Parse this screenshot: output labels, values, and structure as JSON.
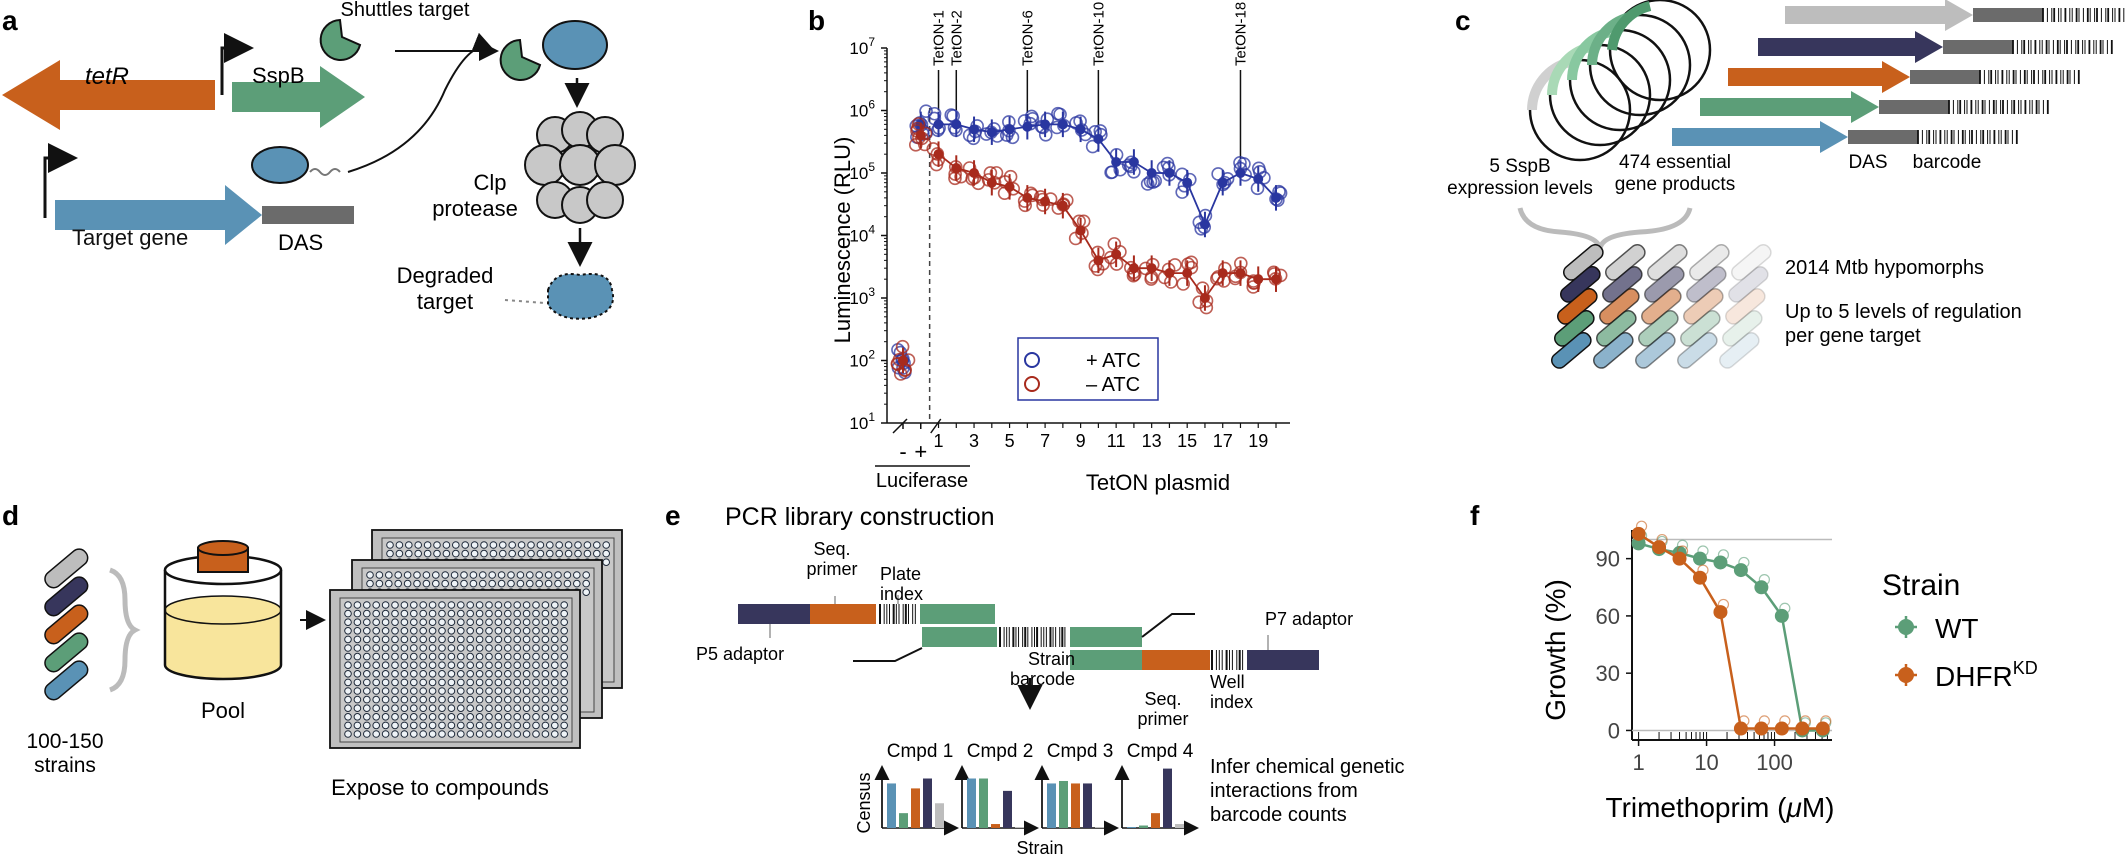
{
  "colors": {
    "orange": "#c8601c",
    "green": "#5c9e78",
    "blue": "#5a92b5",
    "navy": "#37365c",
    "grey": "#bdbdbd",
    "dark_grey": "#6b6b6b",
    "plus_atc": "#2936a0",
    "minus_atc": "#a82a1c",
    "yellow": "#f8e59c",
    "plate": "#bfbfbf"
  },
  "panel_a": {
    "letter": "a",
    "tetR": "tetR",
    "sspb": "SspB",
    "shuttles": "Shuttles\ntarget",
    "clp": "Clp\nprotease",
    "target_gene": "Target gene",
    "das": "DAS",
    "degraded": "Degraded\ntarget"
  },
  "panel_b": {
    "letter": "b",
    "ylabel": "Luminescence (RLU)",
    "xlabel": "TetON plasmid",
    "luciferase_label": "Luciferase",
    "luciferase_ticks": [
      "-",
      "+"
    ],
    "legend": [
      "+ ATC",
      "– ATC"
    ],
    "annotations": [
      "TetON-1",
      "TetON-2",
      "TetON-6",
      "TetON-10",
      "TetON-18"
    ]
  },
  "chart_data": {
    "type": "scatter",
    "yscale": "log",
    "ylim": [
      10,
      10000000
    ],
    "yticks": [
      "10^1",
      "10^2",
      "10^3",
      "10^4",
      "10^5",
      "10^6",
      "10^7"
    ],
    "categories": [
      "-",
      "+",
      "1",
      "2",
      "3",
      "4",
      "5",
      "6",
      "7",
      "8",
      "9",
      "10",
      "11",
      "12",
      "13",
      "14",
      "15",
      "16",
      "17",
      "18",
      "19",
      "20"
    ],
    "xticks": [
      "1",
      "3",
      "5",
      "7",
      "9",
      "11",
      "13",
      "15",
      "17",
      "19"
    ],
    "xlabel": "TetON plasmid",
    "ylabel": "Luminescence (RLU)",
    "series": [
      {
        "name": "+ ATC",
        "values": [
          100,
          600000,
          600000,
          600000,
          500000,
          450000,
          500000,
          550000,
          600000,
          600000,
          500000,
          350000,
          150000,
          150000,
          100000,
          100000,
          70000,
          15000,
          70000,
          100000,
          80000,
          40000
        ]
      },
      {
        "name": "– ATC",
        "values": [
          100,
          400000,
          200000,
          120000,
          100000,
          70000,
          60000,
          40000,
          35000,
          30000,
          12000,
          4000,
          5000,
          3000,
          3000,
          2500,
          2500,
          1000,
          2500,
          2500,
          2000,
          2000
        ]
      }
    ],
    "highlighted": [
      "TetON-1",
      "TetON-2",
      "TetON-6",
      "TetON-10",
      "TetON-18"
    ]
  },
  "panel_c": {
    "letter": "c",
    "sspb_levels": "5 SspB\nexpression levels",
    "essential": "474 essential\ngene products",
    "das": "DAS",
    "barcode": "barcode",
    "hypomorphs": "2014 Mtb hypomorphs",
    "regulation": "Up to 5 levels of regulation\nper gene target"
  },
  "panel_d": {
    "letter": "d",
    "strains": "100-150\nstrains",
    "pool": "Pool",
    "expose": "Expose to compounds"
  },
  "panel_e": {
    "letter": "e",
    "title": "PCR library construction",
    "seq_primer": "Seq.\nprimer",
    "plate_index": "Plate\nindex",
    "p5": "P5 adaptor",
    "p7": "P7 adaptor",
    "strain_barcode": "Strain\nbarcode",
    "seq_primer2": "Seq.\nprimer",
    "well_index": "Well\nindex",
    "cmpds": [
      "Cmpd 1",
      "Cmpd 2",
      "Cmpd 3",
      "Cmpd 4"
    ],
    "census": "Census",
    "strain": "Strain",
    "infer": "Infer chemical genetic\ninteractions from\nbarcode counts",
    "bars": [
      [
        0.9,
        0.3,
        0.8,
        0.7,
        1.0,
        0.5
      ],
      [
        1.0,
        1.0,
        0.08,
        0.1,
        0.75,
        0.0
      ],
      [
        0.9,
        0.95,
        0.9,
        0.1,
        0.9,
        0.0
      ],
      [
        0.0,
        0.05,
        0.3,
        0.8,
        1.2,
        0.08
      ]
    ]
  },
  "panel_f": {
    "letter": "f",
    "chart_data": {
      "type": "line",
      "xscale": "log",
      "xlabel": "Trimethoprim (μM)",
      "ylabel": "Growth (%)",
      "xticks": [
        "1",
        "10",
        "100"
      ],
      "yticks": [
        "0",
        "30",
        "60",
        "90"
      ],
      "series": [
        {
          "name": "WT",
          "x": [
            1,
            2,
            4,
            8,
            16,
            32,
            64,
            128,
            256,
            512
          ],
          "y": [
            98,
            95,
            93,
            90,
            88,
            84,
            75,
            60,
            0,
            0
          ]
        },
        {
          "name": "DHFR",
          "x": [
            1,
            2,
            4,
            8,
            16,
            32,
            64,
            128,
            256,
            512
          ],
          "y": [
            103,
            96,
            90,
            80,
            62,
            1,
            1,
            1,
            1,
            1
          ]
        }
      ]
    },
    "legend_title": "Strain",
    "legend": [
      "WT",
      "DHFR"
    ],
    "superscript": "KD"
  }
}
